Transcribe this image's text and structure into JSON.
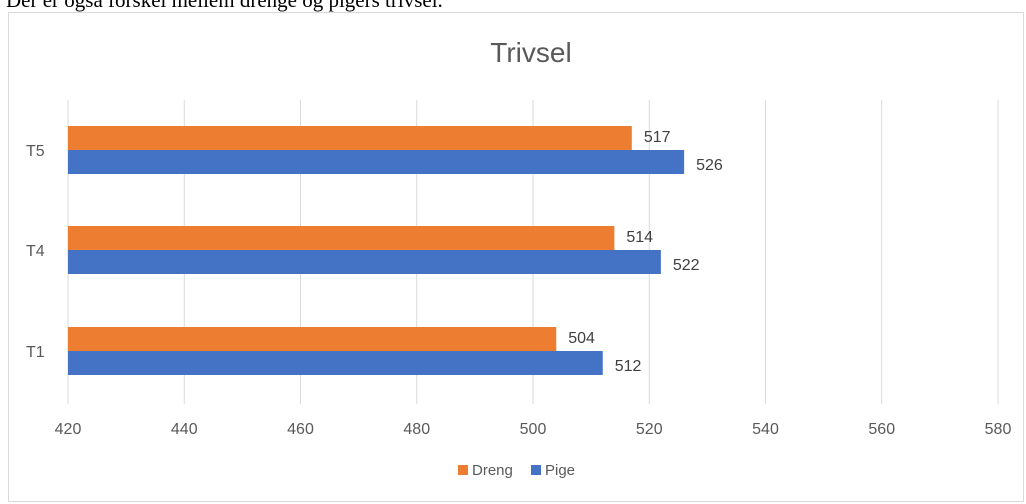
{
  "intro_text": "Der er også forskel mellem drenge og pigers trivsel.",
  "chart_data": {
    "type": "bar",
    "orientation": "horizontal",
    "title": "Trivsel",
    "categories": [
      "T5",
      "T4",
      "T1"
    ],
    "series": [
      {
        "name": "Dreng",
        "color": "#ED7D31",
        "values": [
          517,
          514,
          504
        ]
      },
      {
        "name": "Pige",
        "color": "#4472C4",
        "values": [
          526,
          522,
          512
        ]
      }
    ],
    "xlim": [
      420,
      580
    ],
    "x_ticks": [
      "420",
      "440",
      "460",
      "480",
      "500",
      "520",
      "540",
      "560",
      "580"
    ],
    "grid": true,
    "legend_position": "bottom"
  }
}
